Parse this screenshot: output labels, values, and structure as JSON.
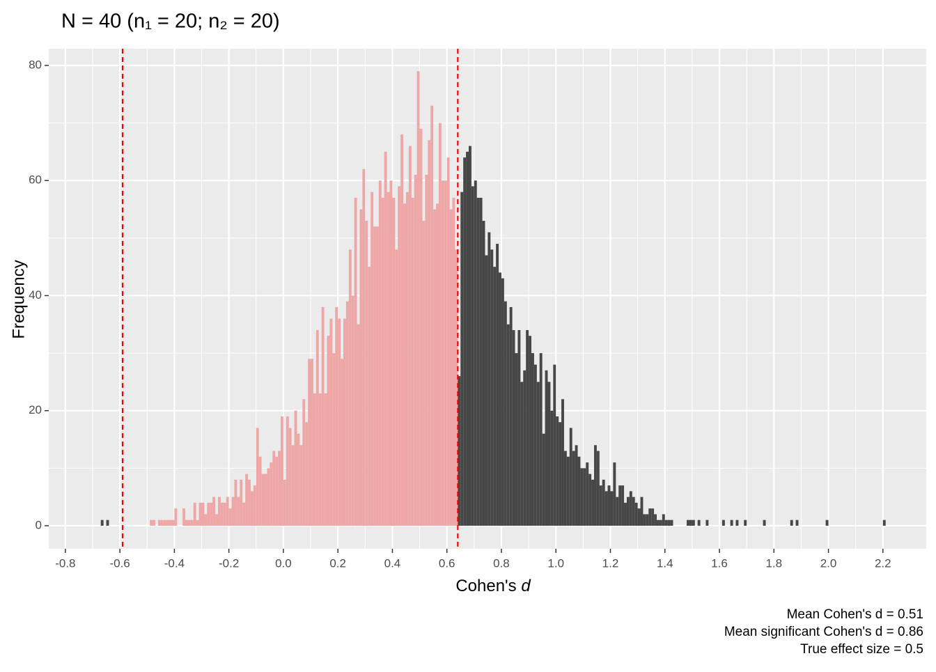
{
  "chart_data": {
    "type": "histogram",
    "title": "N = 40 (n₁ = 20; n₂ = 20)",
    "x_label": [
      "Cohen's",
      "d"
    ],
    "y_label": "Frequency",
    "caption": [
      "Mean Cohen's d = 0.51",
      "Mean significant Cohen's d = 0.86",
      "True effect size = 0.5"
    ],
    "bins": [
      -0.7,
      -0.69,
      -0.68,
      -0.67,
      -0.66,
      -0.65,
      -0.64,
      -0.63,
      -0.62,
      -0.61,
      -0.6,
      -0.59,
      -0.58,
      -0.57,
      -0.56,
      -0.55,
      -0.54,
      -0.53,
      -0.52,
      -0.51,
      -0.5,
      -0.49,
      -0.48,
      -0.47,
      -0.46,
      -0.45,
      -0.44,
      -0.43,
      -0.42,
      -0.41,
      -0.4,
      -0.39,
      -0.38,
      -0.37,
      -0.36,
      -0.35,
      -0.34,
      -0.33,
      -0.32,
      -0.31,
      -0.3,
      -0.29,
      -0.28,
      -0.27,
      -0.26,
      -0.25,
      -0.24,
      -0.23,
      -0.22,
      -0.21,
      -0.2,
      -0.19,
      -0.18,
      -0.17,
      -0.16,
      -0.15,
      -0.14,
      -0.13,
      -0.12,
      -0.11,
      -0.1,
      -0.09,
      -0.08,
      -0.07,
      -0.06,
      -0.05,
      -0.04,
      -0.03,
      -0.02,
      -0.01,
      0.0,
      0.01,
      0.02,
      0.03,
      0.04,
      0.05,
      0.06,
      0.07,
      0.08,
      0.09,
      0.1,
      0.11,
      0.12,
      0.13,
      0.14,
      0.15,
      0.16,
      0.17,
      0.18,
      0.19,
      0.2,
      0.21,
      0.22,
      0.23,
      0.24,
      0.25,
      0.26,
      0.27,
      0.28,
      0.29,
      0.3,
      0.31,
      0.32,
      0.33,
      0.34,
      0.35,
      0.36,
      0.37,
      0.38,
      0.39,
      0.4,
      0.41,
      0.42,
      0.43,
      0.44,
      0.45,
      0.46,
      0.47,
      0.48,
      0.49,
      0.5,
      0.51,
      0.52,
      0.53,
      0.54,
      0.55,
      0.56,
      0.57,
      0.58,
      0.59,
      0.6,
      0.61,
      0.62,
      0.63,
      0.64,
      0.65,
      0.66,
      0.67,
      0.68,
      0.69,
      0.7,
      0.71,
      0.72,
      0.73,
      0.74,
      0.75,
      0.76,
      0.77,
      0.78,
      0.79,
      0.8,
      0.81,
      0.82,
      0.83,
      0.84,
      0.85,
      0.86,
      0.87,
      0.88,
      0.89,
      0.9,
      0.91,
      0.92,
      0.93,
      0.94,
      0.95,
      0.96,
      0.97,
      0.98,
      0.99,
      1.0,
      1.01,
      1.02,
      1.03,
      1.04,
      1.05,
      1.06,
      1.07,
      1.08,
      1.09,
      1.1,
      1.11,
      1.12,
      1.13,
      1.14,
      1.15,
      1.16,
      1.17,
      1.18,
      1.19,
      1.2,
      1.21,
      1.22,
      1.23,
      1.24,
      1.25,
      1.26,
      1.27,
      1.28,
      1.29,
      1.3,
      1.31,
      1.32,
      1.33,
      1.34,
      1.35,
      1.36,
      1.37,
      1.38,
      1.39,
      1.4,
      1.41,
      1.42,
      1.43,
      1.44,
      1.45,
      1.46,
      1.47,
      1.48,
      1.49,
      1.5,
      1.51,
      1.52,
      1.53,
      1.54,
      1.55,
      1.56,
      1.57,
      1.58,
      1.59,
      1.6,
      1.61,
      1.62,
      1.63,
      1.64,
      1.65,
      1.66,
      1.67,
      1.68,
      1.69,
      1.7,
      1.71,
      1.72,
      1.73,
      1.74,
      1.75,
      1.76,
      1.77,
      1.78,
      1.79,
      1.8,
      1.81,
      1.82,
      1.83,
      1.84,
      1.85,
      1.86,
      1.87,
      1.88,
      1.89,
      1.9,
      1.91,
      1.92,
      1.93,
      1.94,
      1.95,
      1.96,
      1.97,
      1.98,
      1.99,
      2.0,
      2.01,
      2.02,
      2.03,
      2.04,
      2.05,
      2.06,
      2.07,
      2.08,
      2.09,
      2.1,
      2.11,
      2.12,
      2.13,
      2.14,
      2.15,
      2.16,
      2.17,
      2.18,
      2.19,
      2.2,
      2.21
    ],
    "counts": [
      0,
      0,
      0,
      1,
      0,
      1,
      0,
      0,
      0,
      0,
      0,
      0,
      0,
      0,
      0,
      0,
      0,
      0,
      0,
      0,
      0,
      1,
      1,
      0,
      1,
      1,
      1,
      1,
      1,
      1,
      3,
      0,
      0,
      3,
      1,
      1,
      1,
      4,
      1,
      4,
      4,
      2,
      4,
      4,
      5,
      2,
      5,
      4,
      4,
      5,
      3,
      5,
      8,
      5,
      8,
      4,
      9,
      8,
      6,
      7,
      17,
      12,
      9,
      9,
      10,
      11,
      13,
      12,
      13,
      19,
      8,
      19,
      17,
      14,
      20,
      16,
      14,
      22,
      18,
      29,
      29,
      23,
      34,
      23,
      38,
      23,
      33,
      36,
      30,
      38,
      36,
      29,
      36,
      39,
      48,
      40,
      57,
      35,
      55,
      62,
      53,
      45,
      58,
      52,
      52,
      60,
      57,
      65,
      58,
      60,
      57,
      48,
      59,
      68,
      56,
      58,
      66,
      57,
      61,
      79,
      69,
      53,
      61,
      67,
      73,
      55,
      56,
      70,
      60,
      60,
      64,
      55,
      57,
      48,
      26,
      58,
      64,
      65,
      66,
      59,
      60,
      57,
      57,
      53,
      47,
      51,
      48,
      45,
      49,
      44,
      43,
      39,
      35,
      38,
      34,
      30,
      34,
      25,
      27,
      34,
      33,
      30,
      28,
      25,
      30,
      16,
      27,
      25,
      20,
      28,
      19,
      18,
      22,
      13,
      12,
      17,
      13,
      14,
      12,
      10,
      10,
      11,
      9,
      8,
      14,
      13,
      7,
      8,
      6,
      7,
      6,
      11,
      5,
      7,
      7,
      4,
      5,
      6,
      5,
      4,
      3,
      5,
      2,
      2,
      3,
      3,
      2,
      1,
      1,
      2,
      1,
      1,
      1,
      0,
      0,
      0,
      0,
      0,
      1,
      1,
      1,
      0,
      1,
      0,
      0,
      1,
      0,
      0,
      0,
      0,
      0,
      1,
      0,
      0,
      1,
      0,
      1,
      0,
      0,
      1,
      0,
      0,
      0,
      0,
      0,
      0,
      1,
      0,
      0,
      0,
      0,
      0,
      0,
      0,
      0,
      0,
      1,
      0,
      1,
      0,
      0,
      0,
      0,
      0,
      0,
      0,
      0,
      0,
      0,
      1,
      0,
      0,
      0,
      0,
      0,
      0,
      0,
      0,
      0,
      0,
      0,
      0,
      0,
      0,
      0,
      0,
      0,
      0,
      0,
      0,
      1
    ],
    "vlines": [
      -0.59,
      0.64
    ],
    "vline_color": "#ff0000",
    "fill_between_lines": "#eea7a7",
    "fill_outside": "#474747",
    "xlim": [
      -0.861,
      2.359
    ],
    "ylim": [
      -4,
      82.9
    ],
    "xticks": [
      -0.8,
      -0.6,
      -0.4,
      -0.2,
      {
        "value": 0,
        "label": "0.0"
      },
      0.2,
      0.4,
      0.6,
      0.8,
      {
        "value": 1,
        "label": "1.0"
      },
      1.2,
      1.4,
      1.6,
      1.8,
      {
        "value": 2,
        "label": "2.0"
      },
      2.2
    ],
    "yticks": [
      0,
      20,
      40,
      60,
      80
    ],
    "grid": true
  }
}
